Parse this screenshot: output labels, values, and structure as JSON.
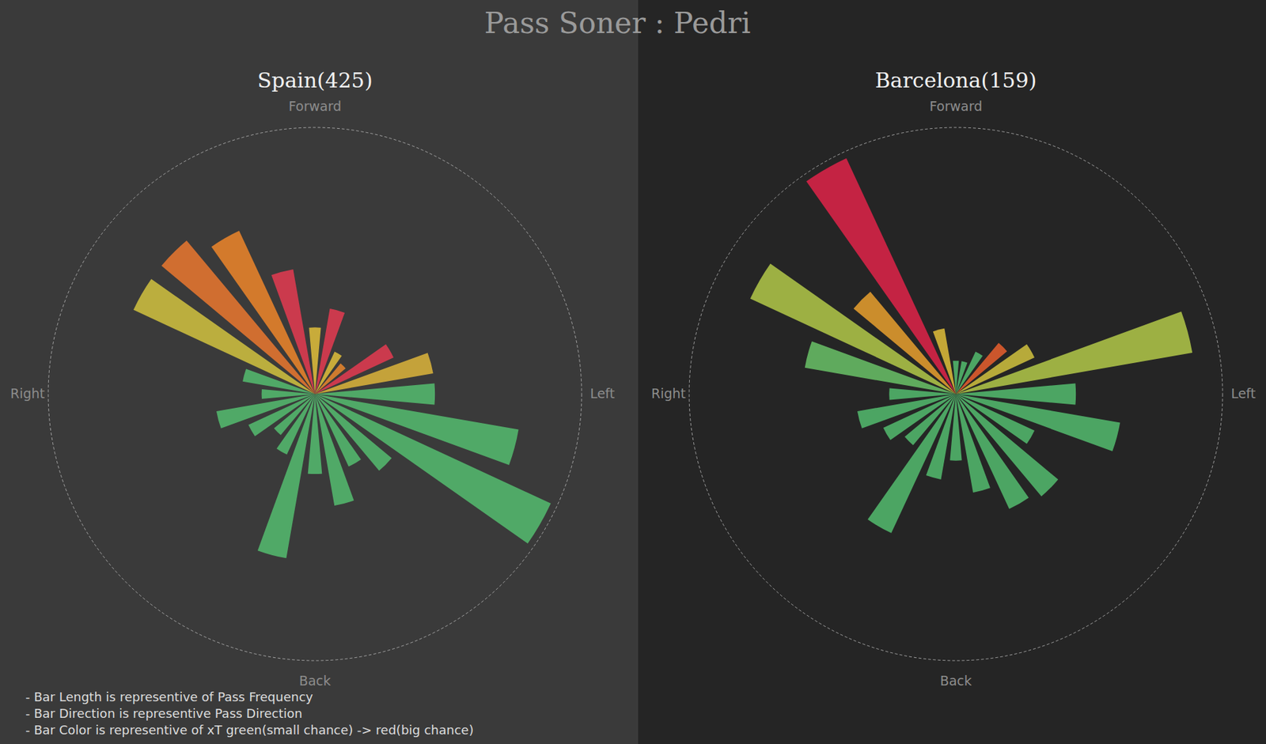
{
  "title": "Pass Soner : Pedri",
  "notes": [
    "- Bar Length is representive of Pass Frequency",
    "- Bar Direction is representive Pass Direction",
    "- Bar Color is representive of xT green(small chance) -> red(big chance)"
  ],
  "chart_data": [
    {
      "type": "polar_bar",
      "title": "Spain(425)",
      "x": [
        0,
        15,
        30,
        45,
        60,
        75,
        90,
        105,
        120,
        135,
        150,
        165,
        180,
        195,
        210,
        225,
        240,
        255,
        270,
        285,
        300,
        315,
        330,
        345
      ],
      "values": [
        10,
        13,
        7,
        6,
        13,
        18,
        18,
        31,
        39,
        15,
        12,
        17,
        12,
        25,
        10,
        8,
        11,
        15,
        8,
        11,
        30,
        30,
        27,
        19
      ],
      "colors": [
        "#e8c53a",
        "#ec3b52",
        "#e8c53a",
        "#f08a2c",
        "#ec3b52",
        "#e3b93a",
        "#55c271",
        "#55c271",
        "#55c271",
        "#55c271",
        "#55c271",
        "#55c271",
        "#55c271",
        "#55c271",
        "#55c271",
        "#55c271",
        "#55c271",
        "#55c271",
        "#55c271",
        "#55c271",
        "#d8c840",
        "#f27a2e",
        "#f5892a",
        "#ec3b52"
      ],
      "xlim": [
        0,
        360
      ],
      "xticks": [
        {
          "value": 0,
          "label": "Forward"
        },
        {
          "value": 90,
          "label": "Left"
        },
        {
          "value": 180,
          "label": "Back"
        },
        {
          "value": 270,
          "label": "Right"
        }
      ],
      "ylim": [
        0,
        40
      ],
      "tick_labels": "x"
    },
    {
      "type": "polar_bar",
      "title": "Barcelona(159)",
      "x": [
        0,
        15,
        30,
        45,
        60,
        75,
        90,
        105,
        120,
        135,
        150,
        165,
        180,
        195,
        210,
        225,
        240,
        255,
        270,
        285,
        300,
        315,
        330,
        345
      ],
      "values": [
        5,
        5,
        7,
        10,
        13,
        36,
        18,
        25,
        13,
        20,
        19,
        15,
        10,
        13,
        23,
        10,
        12,
        15,
        10,
        23,
        34,
        20,
        39,
        10
      ],
      "colors": [
        "#55c271",
        "#55c271",
        "#55c271",
        "#f0622e",
        "#d8c840",
        "#b8cf4a",
        "#55c271",
        "#55c271",
        "#55c271",
        "#55c271",
        "#55c271",
        "#55c271",
        "#55c271",
        "#55c271",
        "#55c271",
        "#55c271",
        "#55c271",
        "#55c271",
        "#55c271",
        "#6cc86a",
        "#b8cf4a",
        "#f0a52e",
        "#e8234a",
        "#e8c53a"
      ],
      "xlim": [
        0,
        360
      ],
      "xticks": [
        {
          "value": 0,
          "label": "Forward"
        },
        {
          "value": 90,
          "label": "Left"
        },
        {
          "value": 180,
          "label": "Back"
        },
        {
          "value": 270,
          "label": "Right"
        }
      ],
      "ylim": [
        0,
        40
      ],
      "tick_labels": "x"
    }
  ]
}
